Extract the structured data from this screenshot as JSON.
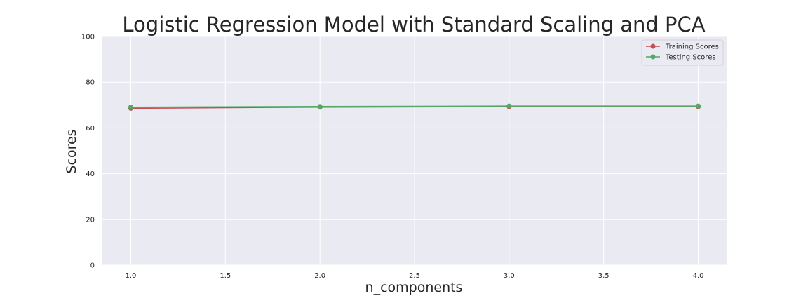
{
  "chart_data": {
    "type": "line",
    "title": "Logistic Regression Model with Standard Scaling and PCA",
    "xlabel": "n_components",
    "ylabel": "Scores",
    "x": [
      1.0,
      2.0,
      3.0,
      4.0
    ],
    "xlim": [
      0.85,
      4.15
    ],
    "ylim": [
      0,
      100
    ],
    "x_ticks": [
      1.0,
      1.5,
      2.0,
      2.5,
      3.0,
      3.5,
      4.0
    ],
    "x_tick_labels": [
      "1.0",
      "1.5",
      "2.0",
      "2.5",
      "3.0",
      "3.5",
      "4.0"
    ],
    "y_ticks": [
      0,
      20,
      40,
      60,
      80,
      100
    ],
    "y_tick_labels": [
      "0",
      "20",
      "40",
      "60",
      "80",
      "100"
    ],
    "grid": true,
    "legend_position": "top-right",
    "series": [
      {
        "name": "Training Scores",
        "color": "#c44e52",
        "marker": "circle",
        "values": [
          68.6,
          69.1,
          69.3,
          69.3
        ]
      },
      {
        "name": "Testing Scores",
        "color": "#55a868",
        "marker": "circle",
        "values": [
          69.1,
          69.4,
          69.6,
          69.6
        ]
      }
    ]
  },
  "colors": {
    "plot_background": "#eaeaf2",
    "grid": "#ffffff",
    "text": "#262626"
  }
}
